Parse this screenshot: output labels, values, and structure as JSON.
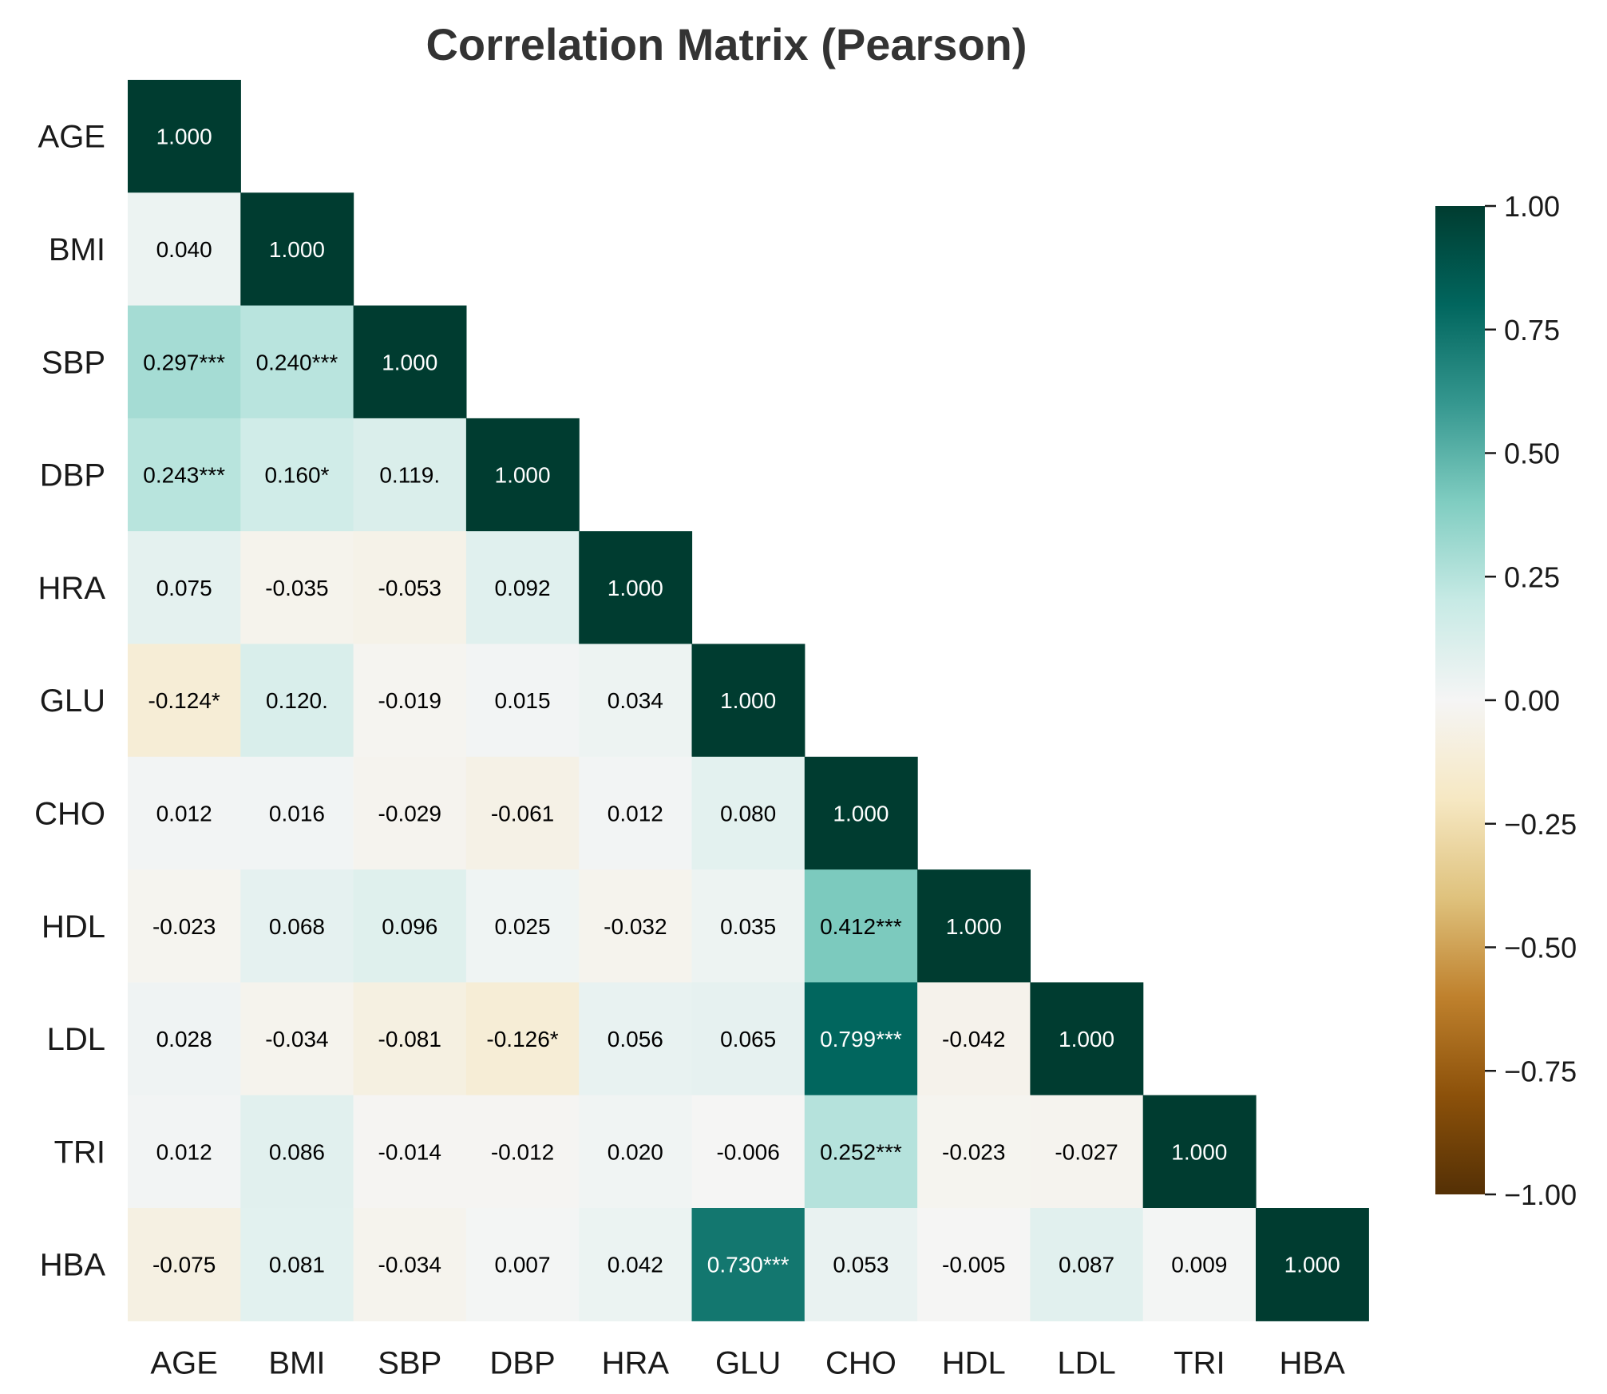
{
  "chart_data": {
    "type": "heatmap",
    "title": "Correlation Matrix (Pearson)",
    "variables": [
      "AGE",
      "BMI",
      "SBP",
      "DBP",
      "HRA",
      "GLU",
      "CHO",
      "HDL",
      "LDL",
      "TRI",
      "HBA"
    ],
    "triangle": "lower",
    "values": [
      [
        1.0
      ],
      [
        0.04,
        1.0
      ],
      [
        0.297,
        0.24,
        1.0
      ],
      [
        0.243,
        0.16,
        0.119,
        1.0
      ],
      [
        0.075,
        -0.035,
        -0.053,
        0.092,
        1.0
      ],
      [
        -0.124,
        0.12,
        -0.019,
        0.015,
        0.034,
        1.0
      ],
      [
        0.012,
        0.016,
        -0.029,
        -0.061,
        0.012,
        0.08,
        1.0
      ],
      [
        -0.023,
        0.068,
        0.096,
        0.025,
        -0.032,
        0.035,
        0.412,
        1.0
      ],
      [
        0.028,
        -0.034,
        -0.081,
        -0.126,
        0.056,
        0.065,
        0.799,
        -0.042,
        1.0
      ],
      [
        0.012,
        0.086,
        -0.014,
        -0.012,
        0.02,
        -0.006,
        0.252,
        -0.023,
        -0.027,
        1.0
      ],
      [
        -0.075,
        0.081,
        -0.034,
        0.007,
        0.042,
        0.73,
        0.053,
        -0.005,
        0.087,
        0.009,
        1.0
      ]
    ],
    "labels": [
      [
        "1.000"
      ],
      [
        "0.040",
        "1.000"
      ],
      [
        "0.297***",
        "0.240***",
        "1.000"
      ],
      [
        "0.243***",
        "0.160*",
        "0.119.",
        "1.000"
      ],
      [
        "0.075",
        "-0.035",
        "-0.053",
        "0.092",
        "1.000"
      ],
      [
        "-0.124*",
        "0.120.",
        "-0.019",
        "0.015",
        "0.034",
        "1.000"
      ],
      [
        "0.012",
        "0.016",
        "-0.029",
        "-0.061",
        "0.012",
        "0.080",
        "1.000"
      ],
      [
        "-0.023",
        "0.068",
        "0.096",
        "0.025",
        "-0.032",
        "0.035",
        "0.412***",
        "1.000"
      ],
      [
        "0.028",
        "-0.034",
        "-0.081",
        "-0.126*",
        "0.056",
        "0.065",
        "0.799***",
        "-0.042",
        "1.000"
      ],
      [
        "0.012",
        "0.086",
        "-0.014",
        "-0.012",
        "0.020",
        "-0.006",
        "0.252***",
        "-0.023",
        "-0.027",
        "1.000"
      ],
      [
        "-0.075",
        "0.081",
        "-0.034",
        "0.007",
        "0.042",
        "0.730***",
        "0.053",
        "-0.005",
        "0.087",
        "0.009",
        "1.000"
      ]
    ],
    "colorbar": {
      "min": -1.0,
      "max": 1.0,
      "ticks": [
        "1.00",
        "0.75",
        "0.50",
        "0.25",
        "0.00",
        "−0.25",
        "−0.50",
        "−0.75",
        "−1.00"
      ],
      "tick_values": [
        1.0,
        0.75,
        0.5,
        0.25,
        0.0,
        -0.25,
        -0.5,
        -0.75,
        -1.0
      ],
      "colormap": "BrBG",
      "colormap_stops": [
        "#543005",
        "#8c510a",
        "#bf812d",
        "#dfc27d",
        "#f6e8c3",
        "#f5f5f5",
        "#c7eae5",
        "#80cdc1",
        "#35978f",
        "#01665e",
        "#003c30"
      ]
    },
    "grid": false,
    "legend": "colorbar-right"
  }
}
